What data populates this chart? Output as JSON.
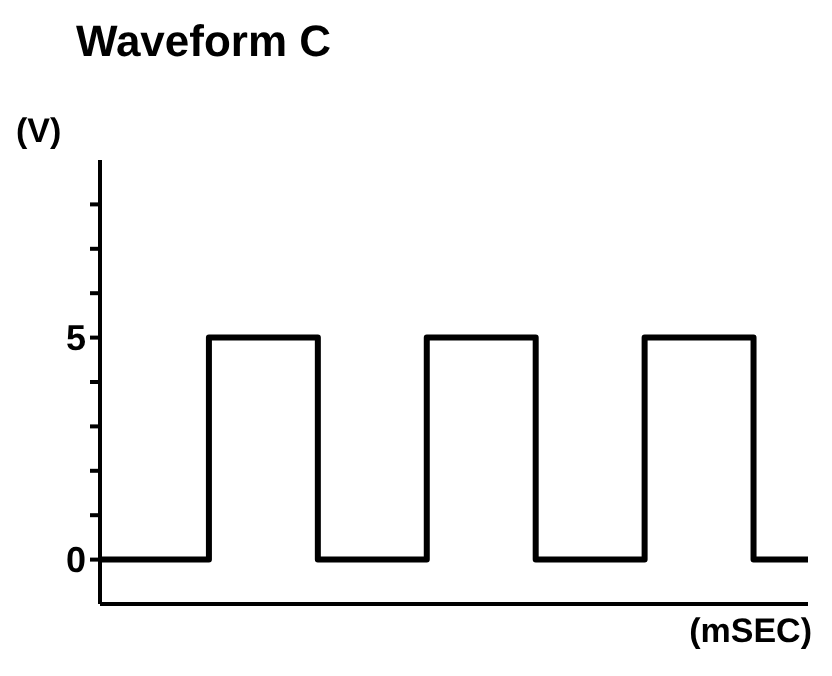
{
  "chart_data": {
    "type": "step",
    "title": "Waveform C",
    "ylabel": "(V)",
    "xlabel": "(mSEC)",
    "categories": [
      null,
      null,
      null,
      null,
      null,
      null,
      null,
      null,
      null,
      null,
      null,
      null,
      null,
      null
    ],
    "series": [
      {
        "color": "#000000",
        "values": [
          0,
          0,
          5,
          5,
          0,
          0,
          5,
          5,
          0,
          0,
          5,
          5,
          0,
          0
        ]
      }
    ],
    "ylim": [
      -1,
      9
    ],
    "yticks": [
      0,
      {
        "value": 1,
        "label": null
      },
      {
        "value": 2,
        "label": null
      },
      {
        "value": 3,
        "label": null
      },
      {
        "value": 4,
        "label": null
      },
      5,
      {
        "value": 6,
        "label": null
      },
      {
        "value": 7,
        "label": null
      },
      {
        "value": 8,
        "label": null
      }
    ],
    "tick_labels": "y",
    "grid": false,
    "legend": false,
    "marker": "none",
    "line_style": "solid"
  }
}
